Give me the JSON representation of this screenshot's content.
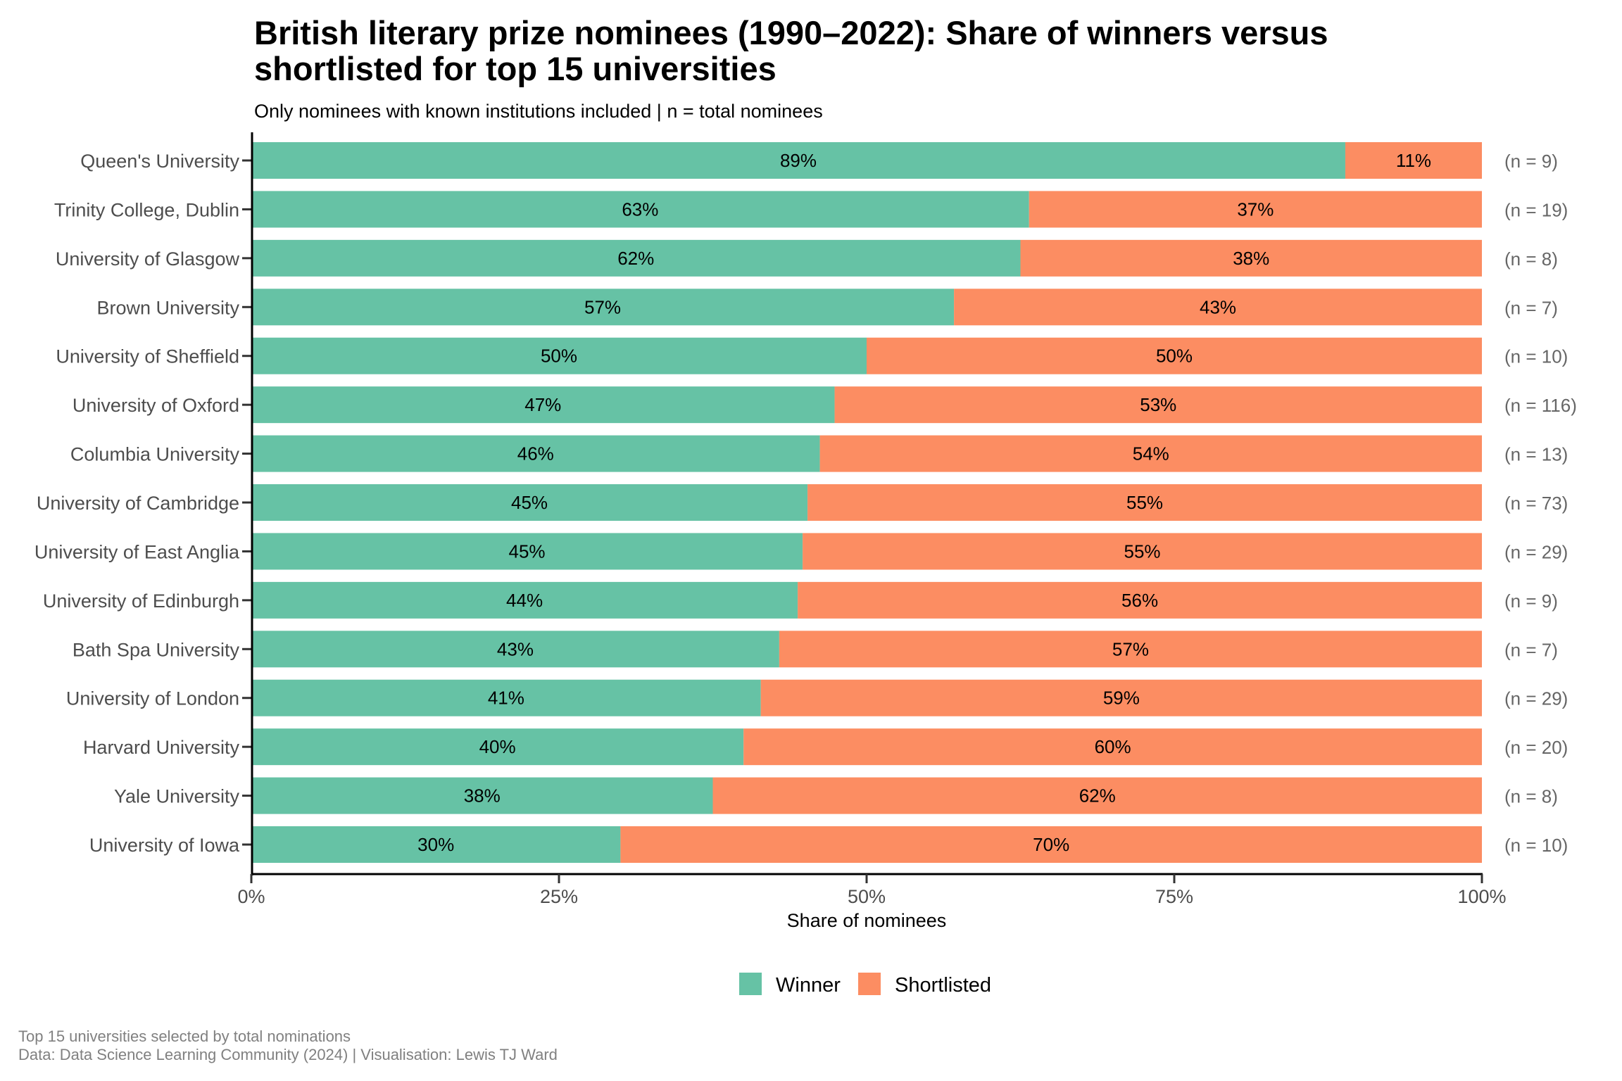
{
  "chart_data": {
    "type": "bar",
    "orientation": "horizontal",
    "stacked": true,
    "title": "British literary prize nominees (1990–2022): Share of winners versus shortlisted for top 15 universities",
    "title_lines": [
      "British literary prize nominees (1990–2022): Share of winners versus",
      "shortlisted for top 15 universities"
    ],
    "subtitle": "Only nominees with known institutions included | n = total nominees",
    "xlabel": "Share of nominees",
    "ylabel": "",
    "xlim": [
      0,
      1
    ],
    "x_ticks": [
      0,
      0.25,
      0.5,
      0.75,
      1
    ],
    "x_tick_labels": [
      "0%",
      "25%",
      "50%",
      "75%",
      "100%"
    ],
    "grid": false,
    "legend_position": "bottom",
    "categories": [
      "Queen's University",
      "Trinity College, Dublin",
      "University of Glasgow",
      "Brown University",
      "University of Sheffield",
      "University of Oxford",
      "Columbia University",
      "University of Cambridge",
      "University of East Anglia",
      "University of Edinburgh",
      "Bath Spa University",
      "University of London",
      "Harvard University",
      "Yale University",
      "University of Iowa"
    ],
    "series": [
      {
        "name": "Winner",
        "color": "#66c2a5",
        "values": [
          0.889,
          0.632,
          0.625,
          0.571,
          0.5,
          0.474,
          0.462,
          0.452,
          0.448,
          0.444,
          0.429,
          0.414,
          0.4,
          0.375,
          0.3
        ],
        "labels": [
          "89%",
          "63%",
          "62%",
          "57%",
          "50%",
          "47%",
          "46%",
          "45%",
          "45%",
          "44%",
          "43%",
          "41%",
          "40%",
          "38%",
          "30%"
        ]
      },
      {
        "name": "Shortlisted",
        "color": "#fc8d62",
        "values": [
          0.111,
          0.368,
          0.375,
          0.429,
          0.5,
          0.526,
          0.538,
          0.548,
          0.552,
          0.556,
          0.571,
          0.586,
          0.6,
          0.625,
          0.7
        ],
        "labels": [
          "11%",
          "37%",
          "38%",
          "43%",
          "50%",
          "53%",
          "54%",
          "55%",
          "55%",
          "56%",
          "57%",
          "59%",
          "60%",
          "62%",
          "70%"
        ]
      }
    ],
    "n_totals": [
      9,
      19,
      8,
      7,
      10,
      116,
      13,
      73,
      29,
      9,
      7,
      29,
      20,
      8,
      10
    ],
    "n_labels": [
      "(n = 9)",
      "(n = 19)",
      "(n = 8)",
      "(n = 7)",
      "(n = 10)",
      "(n = 116)",
      "(n = 13)",
      "(n = 73)",
      "(n = 29)",
      "(n = 9)",
      "(n = 7)",
      "(n = 29)",
      "(n = 20)",
      "(n = 8)",
      "(n = 10)"
    ],
    "legend": [
      {
        "label": "Winner",
        "color": "#66c2a5"
      },
      {
        "label": "Shortlisted",
        "color": "#fc8d62"
      }
    ],
    "caption_lines": [
      "Top 15 universities selected by total nominations",
      "Data: Data Science Learning Community (2024) | Visualisation: Lewis TJ Ward"
    ]
  }
}
